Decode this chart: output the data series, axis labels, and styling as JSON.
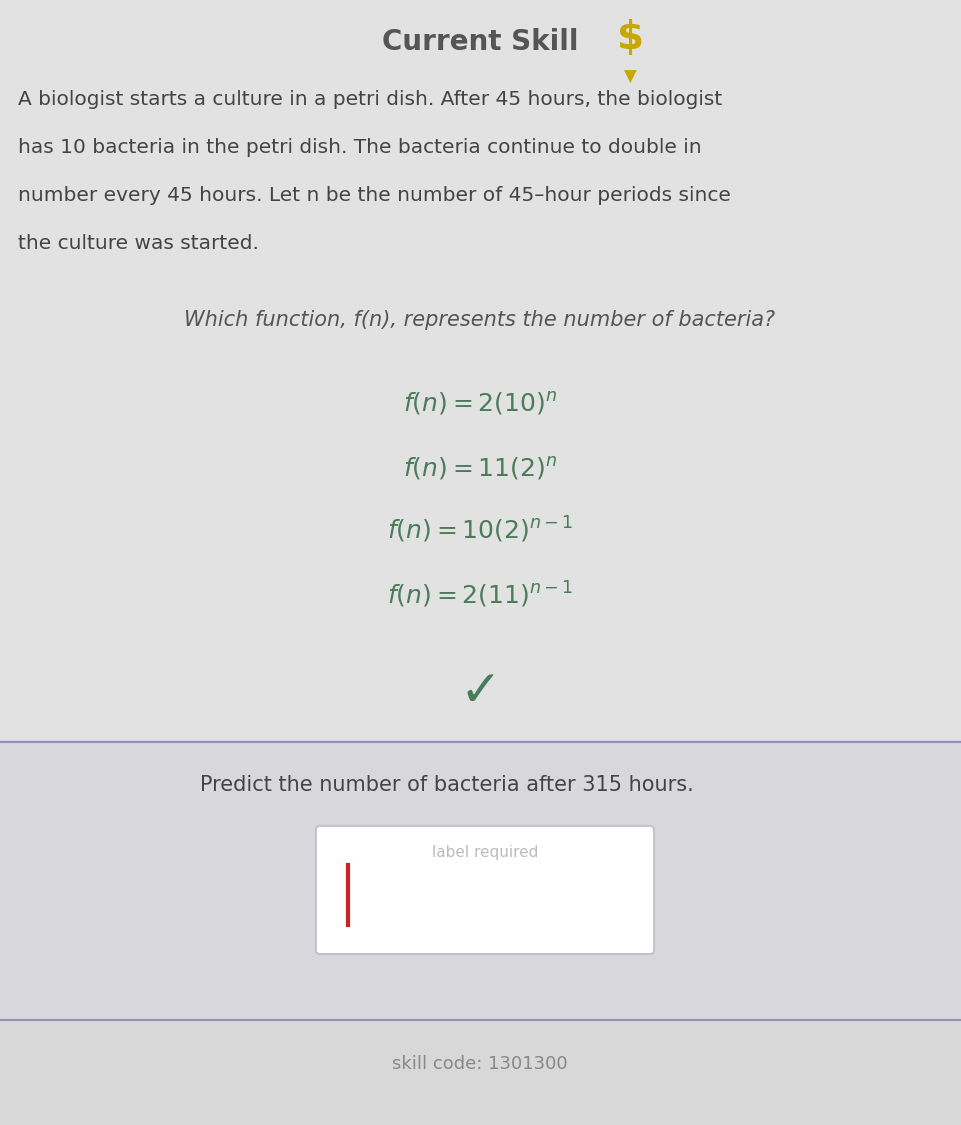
{
  "title": "Current Skill",
  "title_color": "#555555",
  "title_fontsize": 18,
  "bg_color": "#e0e0e0",
  "paragraph_text_line1": "A biologist starts a culture in a petri dish. After 45 hours, the biologist",
  "paragraph_text_line2": "has 10 bacteria in the petri dish. The bacteria continue to double in",
  "paragraph_text_line3": "number every 45 hours. Let n be the number of 45–hour periods since",
  "paragraph_text_line4": "the culture was started.",
  "question_text": "Which function, f(n), represents the number of bacteria?",
  "choices_color": "#4a7c59",
  "checkmark_color": "#4a7c59",
  "divider_color": "#9090cc",
  "predict_text": "Predict the number of bacteria after 315 hours.",
  "predict_color": "#444444",
  "input_box_label": "label required",
  "input_label_color": "#bbbbbb",
  "input_cursor_color": "#cc2222",
  "skill_code_text": "skill code: 1301300",
  "skill_code_color": "#888888",
  "icon_color": "#c8a800",
  "paragraph_color": "#444444",
  "question_color": "#555555",
  "section_bg_top": "#d8d8d8",
  "section_bg_bottom": "#d0d0d8"
}
